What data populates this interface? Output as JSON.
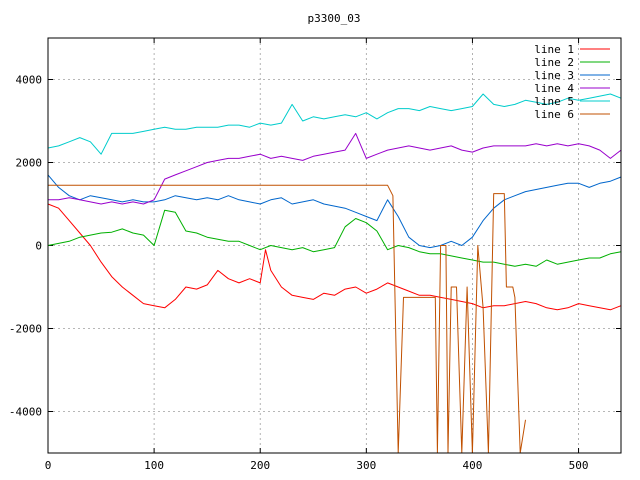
{
  "chart_data": {
    "type": "line",
    "title": "p3300_03",
    "xlabel": "",
    "ylabel": "",
    "xlim": [
      0,
      540
    ],
    "ylim": [
      -5000,
      5000
    ],
    "xticks": [
      0,
      100,
      200,
      300,
      400,
      500
    ],
    "yticks": [
      -4000,
      -2000,
      0,
      2000,
      4000
    ],
    "grid": true,
    "legend_position": "top-right",
    "series": [
      {
        "name": "line 1",
        "color": "#ff0000",
        "points": [
          [
            0,
            1000
          ],
          [
            10,
            900
          ],
          [
            20,
            600
          ],
          [
            30,
            300
          ],
          [
            40,
            0
          ],
          [
            50,
            -400
          ],
          [
            60,
            -750
          ],
          [
            70,
            -1000
          ],
          [
            80,
            -1200
          ],
          [
            90,
            -1400
          ],
          [
            100,
            -1450
          ],
          [
            110,
            -1500
          ],
          [
            120,
            -1300
          ],
          [
            130,
            -1000
          ],
          [
            140,
            -1050
          ],
          [
            150,
            -950
          ],
          [
            160,
            -600
          ],
          [
            170,
            -800
          ],
          [
            180,
            -900
          ],
          [
            190,
            -800
          ],
          [
            200,
            -900
          ],
          [
            205,
            -100
          ],
          [
            210,
            -600
          ],
          [
            220,
            -1000
          ],
          [
            230,
            -1200
          ],
          [
            240,
            -1250
          ],
          [
            250,
            -1300
          ],
          [
            260,
            -1150
          ],
          [
            270,
            -1200
          ],
          [
            280,
            -1050
          ],
          [
            290,
            -1000
          ],
          [
            300,
            -1150
          ],
          [
            310,
            -1050
          ],
          [
            320,
            -900
          ],
          [
            330,
            -1000
          ],
          [
            340,
            -1100
          ],
          [
            350,
            -1200
          ],
          [
            360,
            -1200
          ],
          [
            370,
            -1250
          ],
          [
            380,
            -1300
          ],
          [
            390,
            -1350
          ],
          [
            400,
            -1400
          ],
          [
            410,
            -1500
          ],
          [
            420,
            -1450
          ],
          [
            430,
            -1450
          ],
          [
            440,
            -1400
          ],
          [
            450,
            -1350
          ],
          [
            460,
            -1400
          ],
          [
            470,
            -1500
          ],
          [
            480,
            -1550
          ],
          [
            490,
            -1500
          ],
          [
            500,
            -1400
          ],
          [
            510,
            -1450
          ],
          [
            520,
            -1500
          ],
          [
            530,
            -1550
          ],
          [
            540,
            -1450
          ]
        ]
      },
      {
        "name": "line 2",
        "color": "#00b000",
        "points": [
          [
            0,
            0
          ],
          [
            10,
            50
          ],
          [
            20,
            100
          ],
          [
            30,
            200
          ],
          [
            40,
            250
          ],
          [
            50,
            300
          ],
          [
            60,
            320
          ],
          [
            70,
            400
          ],
          [
            80,
            300
          ],
          [
            90,
            250
          ],
          [
            100,
            0
          ],
          [
            110,
            850
          ],
          [
            120,
            800
          ],
          [
            130,
            350
          ],
          [
            140,
            300
          ],
          [
            150,
            200
          ],
          [
            160,
            150
          ],
          [
            170,
            100
          ],
          [
            180,
            100
          ],
          [
            190,
            0
          ],
          [
            200,
            -100
          ],
          [
            210,
            0
          ],
          [
            220,
            -50
          ],
          [
            230,
            -100
          ],
          [
            240,
            -50
          ],
          [
            250,
            -150
          ],
          [
            260,
            -100
          ],
          [
            270,
            -50
          ],
          [
            280,
            450
          ],
          [
            290,
            650
          ],
          [
            300,
            550
          ],
          [
            310,
            350
          ],
          [
            320,
            -100
          ],
          [
            330,
            0
          ],
          [
            340,
            -50
          ],
          [
            350,
            -150
          ],
          [
            360,
            -200
          ],
          [
            370,
            -200
          ],
          [
            380,
            -250
          ],
          [
            390,
            -300
          ],
          [
            400,
            -350
          ],
          [
            410,
            -400
          ],
          [
            420,
            -400
          ],
          [
            430,
            -450
          ],
          [
            440,
            -500
          ],
          [
            450,
            -450
          ],
          [
            460,
            -500
          ],
          [
            470,
            -350
          ],
          [
            480,
            -450
          ],
          [
            490,
            -400
          ],
          [
            500,
            -350
          ],
          [
            510,
            -300
          ],
          [
            520,
            -300
          ],
          [
            530,
            -200
          ],
          [
            540,
            -150
          ]
        ]
      },
      {
        "name": "line 3",
        "color": "#0066cc",
        "points": [
          [
            0,
            1700
          ],
          [
            10,
            1400
          ],
          [
            20,
            1200
          ],
          [
            30,
            1100
          ],
          [
            40,
            1200
          ],
          [
            50,
            1150
          ],
          [
            60,
            1100
          ],
          [
            70,
            1050
          ],
          [
            80,
            1100
          ],
          [
            90,
            1050
          ],
          [
            100,
            1050
          ],
          [
            110,
            1100
          ],
          [
            120,
            1200
          ],
          [
            130,
            1150
          ],
          [
            140,
            1100
          ],
          [
            150,
            1150
          ],
          [
            160,
            1100
          ],
          [
            170,
            1200
          ],
          [
            180,
            1100
          ],
          [
            190,
            1050
          ],
          [
            200,
            1000
          ],
          [
            210,
            1100
          ],
          [
            220,
            1150
          ],
          [
            230,
            1000
          ],
          [
            240,
            1050
          ],
          [
            250,
            1100
          ],
          [
            260,
            1000
          ],
          [
            270,
            950
          ],
          [
            280,
            900
          ],
          [
            290,
            800
          ],
          [
            300,
            700
          ],
          [
            310,
            600
          ],
          [
            320,
            1100
          ],
          [
            330,
            700
          ],
          [
            340,
            200
          ],
          [
            350,
            0
          ],
          [
            360,
            -50
          ],
          [
            370,
            0
          ],
          [
            380,
            100
          ],
          [
            390,
            0
          ],
          [
            400,
            200
          ],
          [
            410,
            600
          ],
          [
            420,
            900
          ],
          [
            430,
            1100
          ],
          [
            440,
            1200
          ],
          [
            450,
            1300
          ],
          [
            460,
            1350
          ],
          [
            470,
            1400
          ],
          [
            480,
            1450
          ],
          [
            490,
            1500
          ],
          [
            500,
            1500
          ],
          [
            510,
            1400
          ],
          [
            520,
            1500
          ],
          [
            530,
            1550
          ],
          [
            540,
            1650
          ]
        ]
      },
      {
        "name": "line 4",
        "color": "#9900cc",
        "points": [
          [
            0,
            1100
          ],
          [
            10,
            1100
          ],
          [
            20,
            1150
          ],
          [
            30,
            1100
          ],
          [
            40,
            1050
          ],
          [
            50,
            1000
          ],
          [
            60,
            1050
          ],
          [
            70,
            1000
          ],
          [
            80,
            1050
          ],
          [
            90,
            1000
          ],
          [
            100,
            1100
          ],
          [
            110,
            1600
          ],
          [
            120,
            1700
          ],
          [
            130,
            1800
          ],
          [
            140,
            1900
          ],
          [
            150,
            2000
          ],
          [
            160,
            2050
          ],
          [
            170,
            2100
          ],
          [
            180,
            2100
          ],
          [
            190,
            2150
          ],
          [
            200,
            2200
          ],
          [
            210,
            2100
          ],
          [
            220,
            2150
          ],
          [
            230,
            2100
          ],
          [
            240,
            2050
          ],
          [
            250,
            2150
          ],
          [
            260,
            2200
          ],
          [
            270,
            2250
          ],
          [
            280,
            2300
          ],
          [
            290,
            2700
          ],
          [
            300,
            2100
          ],
          [
            310,
            2200
          ],
          [
            320,
            2300
          ],
          [
            330,
            2350
          ],
          [
            340,
            2400
          ],
          [
            350,
            2350
          ],
          [
            360,
            2300
          ],
          [
            370,
            2350
          ],
          [
            380,
            2400
          ],
          [
            390,
            2300
          ],
          [
            400,
            2250
          ],
          [
            410,
            2350
          ],
          [
            420,
            2400
          ],
          [
            430,
            2400
          ],
          [
            440,
            2400
          ],
          [
            450,
            2400
          ],
          [
            460,
            2450
          ],
          [
            470,
            2400
          ],
          [
            480,
            2450
          ],
          [
            490,
            2400
          ],
          [
            500,
            2450
          ],
          [
            510,
            2400
          ],
          [
            520,
            2300
          ],
          [
            530,
            2100
          ],
          [
            540,
            2300
          ]
        ]
      },
      {
        "name": "line 5",
        "color": "#00cccc",
        "points": [
          [
            0,
            2350
          ],
          [
            10,
            2400
          ],
          [
            20,
            2500
          ],
          [
            30,
            2600
          ],
          [
            40,
            2500
          ],
          [
            50,
            2200
          ],
          [
            60,
            2700
          ],
          [
            70,
            2700
          ],
          [
            80,
            2700
          ],
          [
            90,
            2750
          ],
          [
            100,
            2800
          ],
          [
            110,
            2850
          ],
          [
            120,
            2800
          ],
          [
            130,
            2800
          ],
          [
            140,
            2850
          ],
          [
            150,
            2850
          ],
          [
            160,
            2850
          ],
          [
            170,
            2900
          ],
          [
            180,
            2900
          ],
          [
            190,
            2850
          ],
          [
            200,
            2950
          ],
          [
            210,
            2900
          ],
          [
            220,
            2950
          ],
          [
            230,
            3400
          ],
          [
            240,
            3000
          ],
          [
            250,
            3100
          ],
          [
            260,
            3050
          ],
          [
            270,
            3100
          ],
          [
            280,
            3150
          ],
          [
            290,
            3100
          ],
          [
            300,
            3200
          ],
          [
            310,
            3050
          ],
          [
            320,
            3200
          ],
          [
            330,
            3300
          ],
          [
            340,
            3300
          ],
          [
            350,
            3250
          ],
          [
            360,
            3350
          ],
          [
            370,
            3300
          ],
          [
            380,
            3250
          ],
          [
            390,
            3300
          ],
          [
            400,
            3350
          ],
          [
            410,
            3650
          ],
          [
            420,
            3400
          ],
          [
            430,
            3350
          ],
          [
            440,
            3400
          ],
          [
            450,
            3500
          ],
          [
            460,
            3450
          ],
          [
            470,
            3400
          ],
          [
            480,
            3450
          ],
          [
            490,
            3550
          ],
          [
            500,
            3500
          ],
          [
            510,
            3550
          ],
          [
            520,
            3600
          ],
          [
            530,
            3650
          ],
          [
            540,
            3550
          ]
        ]
      },
      {
        "name": "line 6",
        "color": "#c05000",
        "points": [
          [
            0,
            1450
          ],
          [
            320,
            1450
          ],
          [
            325,
            1200
          ],
          [
            330,
            -5000
          ],
          [
            335,
            -1250
          ],
          [
            360,
            -1250
          ],
          [
            365,
            -1250
          ],
          [
            367,
            -5000
          ],
          [
            370,
            0
          ],
          [
            375,
            0
          ],
          [
            377,
            -5000
          ],
          [
            380,
            -1000
          ],
          [
            385,
            -1000
          ],
          [
            390,
            -5000
          ],
          [
            395,
            -1000
          ],
          [
            400,
            -5000
          ],
          [
            405,
            0
          ],
          [
            410,
            -1500
          ],
          [
            415,
            -5000
          ],
          [
            420,
            1250
          ],
          [
            430,
            1250
          ],
          [
            432,
            -1000
          ],
          [
            438,
            -1000
          ],
          [
            440,
            -1250
          ],
          [
            445,
            -5000
          ],
          [
            450,
            -4200
          ]
        ]
      }
    ]
  }
}
